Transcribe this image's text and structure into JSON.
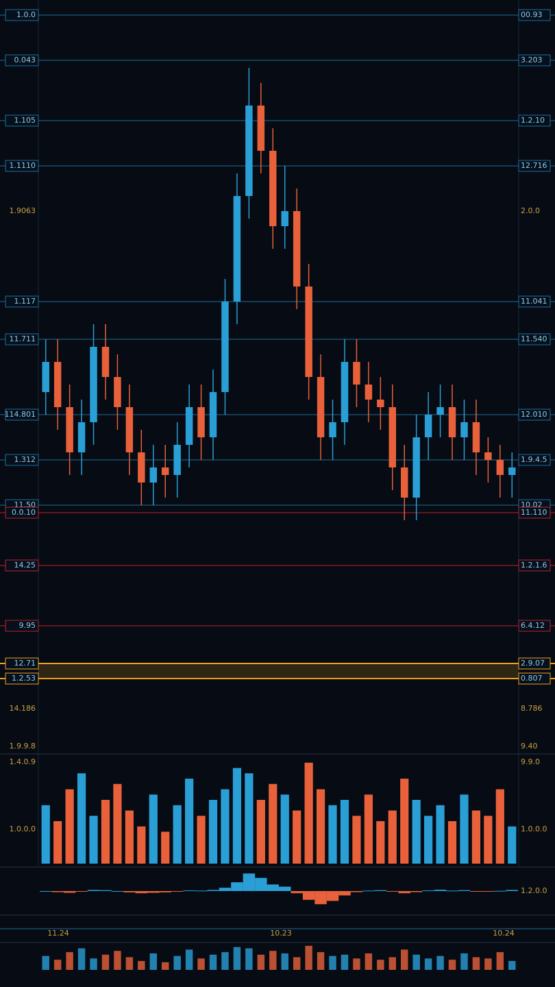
{
  "chart_data": {
    "type": "candlestick",
    "up_color": "#2a9fd6",
    "down_color": "#e8613a",
    "ylim": [
      0,
      100
    ],
    "levels": [
      {
        "value": 98,
        "left": "1.0.0",
        "right": "00.93",
        "color": "#1f6f9a",
        "line": true
      },
      {
        "value": 92,
        "left": "0.043",
        "right": "3.203",
        "color": "#1f6f9a",
        "line": true
      },
      {
        "value": 84,
        "left": "1.105",
        "right": "1.2.10",
        "color": "#1f6f9a",
        "line": true
      },
      {
        "value": 78,
        "left": "1.1110",
        "right": "12.716",
        "color": "#1f6f9a",
        "line": true
      },
      {
        "value": 72,
        "left": "1.9063",
        "right": "2.0.0",
        "color": "#c8a040",
        "line": false
      },
      {
        "value": 60,
        "left": "1.117",
        "right": "11.041",
        "color": "#1f6f9a",
        "line": true
      },
      {
        "value": 55,
        "left": "11.711",
        "right": "11.540",
        "color": "#1f6f9a",
        "line": true
      },
      {
        "value": 45,
        "left": "114.801",
        "right": "12.010",
        "color": "#1f6f9a",
        "line": true
      },
      {
        "value": 39,
        "left": "1.312",
        "right": "1.9.4.5",
        "color": "#1f6f9a",
        "line": true
      },
      {
        "value": 33,
        "left": "11.50",
        "right": "10.02",
        "color": "#1f6f9a",
        "line": true
      },
      {
        "value": 32,
        "left": "0.0.10",
        "right": "11.110",
        "color": "#c0202a",
        "line": true
      },
      {
        "value": 25,
        "left": "14.25",
        "right": "1.2.1.6",
        "color": "#c0202a",
        "line": true
      },
      {
        "value": 17,
        "left": "9.95",
        "right": "6.4.12",
        "color": "#c0202a",
        "line": true
      },
      {
        "value": 12,
        "left": "12.71",
        "right": "2.9.07",
        "color": "#f0a020",
        "line": true
      },
      {
        "value": 10,
        "left": "1.2.53",
        "right": "0.807",
        "color": "#f0a020",
        "line": true
      },
      {
        "value": 6,
        "left": "14.186",
        "right": "8.786",
        "color": "#c8a040",
        "line": false
      },
      {
        "value": 1,
        "left": "1.9.9.8",
        "right": "9.40",
        "color": "#c8a040",
        "line": false
      }
    ],
    "candles": [
      [
        48,
        55,
        45,
        52
      ],
      [
        52,
        55,
        43,
        46
      ],
      [
        46,
        49,
        37,
        40
      ],
      [
        40,
        47,
        37,
        44
      ],
      [
        44,
        57,
        41,
        54
      ],
      [
        54,
        57,
        47,
        50
      ],
      [
        50,
        53,
        43,
        46
      ],
      [
        46,
        49,
        37,
        40
      ],
      [
        40,
        43,
        33,
        36
      ],
      [
        36,
        41,
        33,
        38
      ],
      [
        38,
        41,
        34,
        37
      ],
      [
        37,
        44,
        34,
        41
      ],
      [
        41,
        49,
        38,
        46
      ],
      [
        46,
        49,
        39,
        42
      ],
      [
        42,
        51,
        39,
        48
      ],
      [
        48,
        63,
        45,
        60
      ],
      [
        60,
        77,
        57,
        74
      ],
      [
        74,
        91,
        71,
        86
      ],
      [
        86,
        89,
        77,
        80
      ],
      [
        80,
        83,
        67,
        70
      ],
      [
        70,
        78,
        67,
        72
      ],
      [
        72,
        75,
        59,
        62
      ],
      [
        62,
        65,
        47,
        50
      ],
      [
        50,
        53,
        39,
        42
      ],
      [
        42,
        47,
        39,
        44
      ],
      [
        44,
        55,
        41,
        52
      ],
      [
        52,
        55,
        46,
        49
      ],
      [
        49,
        52,
        44,
        47
      ],
      [
        47,
        50,
        43,
        46
      ],
      [
        46,
        49,
        35,
        38
      ],
      [
        38,
        41,
        31,
        34
      ],
      [
        34,
        45,
        31,
        42
      ],
      [
        42,
        48,
        39,
        45
      ],
      [
        45,
        49,
        42,
        46
      ],
      [
        46,
        49,
        39,
        42
      ],
      [
        42,
        47,
        39,
        44
      ],
      [
        44,
        47,
        37,
        40
      ],
      [
        40,
        42,
        36,
        39
      ],
      [
        39,
        41,
        34,
        37
      ],
      [
        37,
        40,
        34,
        38
      ]
    ],
    "volume": {
      "ylim": [
        0,
        100
      ],
      "labels_left": [
        "1.4.0.9",
        "1.0.0.0"
      ],
      "labels_right": [
        "9.9.0",
        "1.0.0.0"
      ],
      "values": [
        55,
        40,
        70,
        85,
        45,
        60,
        75,
        50,
        35,
        65,
        30,
        55,
        80,
        45,
        60,
        70,
        90,
        85,
        60,
        75,
        65,
        50,
        95,
        70,
        55,
        60,
        45,
        65,
        40,
        50,
        80,
        60,
        45,
        55,
        40,
        65,
        50,
        45,
        70,
        35
      ]
    },
    "oscillator": {
      "ylim": [
        -100,
        100
      ],
      "label": "1.2.0.0",
      "values": [
        0,
        -5,
        -8,
        -3,
        5,
        4,
        0,
        -6,
        -10,
        -8,
        -6,
        -2,
        3,
        2,
        5,
        15,
        40,
        80,
        60,
        30,
        20,
        -10,
        -40,
        -60,
        -45,
        -20,
        -5,
        2,
        4,
        -3,
        -10,
        -5,
        3,
        6,
        2,
        4,
        -2,
        -3,
        1,
        5
      ]
    },
    "x_labels": [
      "11.24",
      "10.23",
      "10.24"
    ]
  }
}
